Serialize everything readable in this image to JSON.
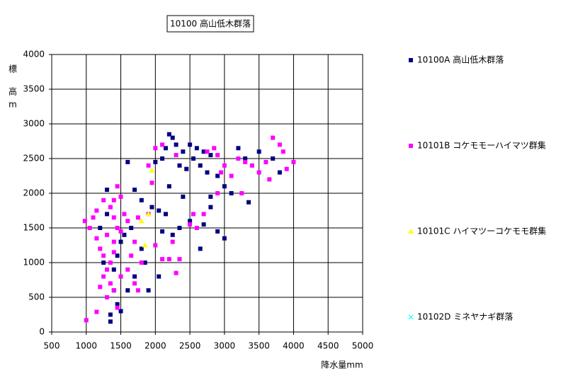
{
  "chart_data": {
    "type": "scatter",
    "title": "10100 高山低木群落",
    "y_label": [
      "標",
      "高",
      "m"
    ],
    "x_label": "降水量mm",
    "xlim": [
      500,
      5000
    ],
    "xticks": [
      500,
      1000,
      1500,
      2000,
      2500,
      3000,
      3500,
      4000,
      4500,
      5000
    ],
    "ylim": [
      0,
      4000
    ],
    "yticks": [
      0,
      500,
      1000,
      1500,
      2000,
      2500,
      3000,
      3500,
      4000
    ],
    "grid": true,
    "legend": "right",
    "series": [
      {
        "name": "10100A 高山低木群落",
        "color": "#000080",
        "marker": "square",
        "x": [
          2200,
          2250,
          2300,
          2150,
          2400,
          2500,
          2600,
          2700,
          2800,
          2550,
          2350,
          2450,
          2650,
          2750,
          2900,
          3000,
          3200,
          3300,
          3500,
          3700,
          3800,
          3100,
          2100,
          2000,
          1950,
          2050,
          2150,
          2100,
          2250,
          2500,
          2700,
          2800,
          2650,
          3000,
          2900,
          3350,
          1600,
          1700,
          1800,
          1650,
          1550,
          1500,
          1450,
          1400,
          1400,
          1450,
          1350,
          1350,
          1500,
          1600,
          1700,
          1850,
          1900,
          1800,
          1250,
          1300,
          1200,
          1300,
          2050,
          2350,
          2400,
          2200,
          2800
        ],
        "values": [
          2850,
          2800,
          2700,
          2650,
          2600,
          2700,
          2650,
          2600,
          2550,
          2500,
          2400,
          2350,
          2400,
          2300,
          2250,
          2100,
          2650,
          2500,
          2600,
          2500,
          2300,
          2000,
          2500,
          2450,
          1800,
          1750,
          1700,
          1450,
          1400,
          1600,
          1550,
          1800,
          1200,
          1350,
          1450,
          1870,
          2450,
          2050,
          1900,
          1500,
          1400,
          1300,
          1100,
          900,
          600,
          400,
          250,
          150,
          300,
          600,
          800,
          1000,
          600,
          1200,
          1000,
          1700,
          1500,
          2050,
          800,
          1500,
          1950,
          2100,
          1950
        ]
      },
      {
        "name": "10101B コケモモーハイマツ群集",
        "color": "#ff00ff",
        "marker": "square",
        "x": [
          1000,
          1150,
          980,
          1050,
          1100,
          1150,
          1200,
          1250,
          1300,
          1350,
          1400,
          1300,
          1350,
          1400,
          1450,
          1500,
          1550,
          1600,
          1450,
          1400,
          1350,
          1250,
          1300,
          1450,
          1500,
          1600,
          1700,
          1750,
          1650,
          1800,
          1700,
          1750,
          1900,
          1950,
          1900,
          2000,
          2100,
          2300,
          2200,
          2300,
          2000,
          2250,
          2100,
          2350,
          2550,
          2600,
          2700,
          2750,
          2850,
          2900,
          3000,
          2950,
          3100,
          3200,
          3300,
          3400,
          3500,
          3600,
          3700,
          3800,
          3850,
          3900,
          4000,
          3650,
          2900,
          3250,
          2500,
          1250,
          1150,
          1400,
          1500,
          1200,
          1400
        ],
        "values": [
          170,
          290,
          1600,
          1500,
          1650,
          1350,
          1200,
          1100,
          900,
          700,
          600,
          1400,
          1800,
          1900,
          2100,
          1950,
          1700,
          1600,
          1500,
          1300,
          1000,
          800,
          500,
          350,
          800,
          900,
          700,
          600,
          1100,
          1000,
          1300,
          1650,
          1700,
          2150,
          2400,
          2650,
          2700,
          2550,
          1050,
          850,
          1250,
          1300,
          1050,
          1050,
          1700,
          1500,
          1700,
          2600,
          2650,
          2550,
          2400,
          2300,
          2250,
          2500,
          2450,
          2400,
          2300,
          2450,
          2800,
          2700,
          2600,
          2350,
          2450,
          2200,
          2000,
          2000,
          1550,
          1900,
          1750,
          1150,
          1450,
          650,
          1650
        ]
      },
      {
        "name": "10101C ハイマツーコケモモ群集",
        "color": "#ffff00",
        "marker": "triangle",
        "x": [
          1950,
          1900,
          1800,
          1850
        ],
        "values": [
          2330,
          1700,
          1600,
          1250
        ]
      },
      {
        "name": "10102D ミネヤナギ群落",
        "color": "#00ffff",
        "marker": "x",
        "x": [],
        "values": []
      }
    ]
  }
}
